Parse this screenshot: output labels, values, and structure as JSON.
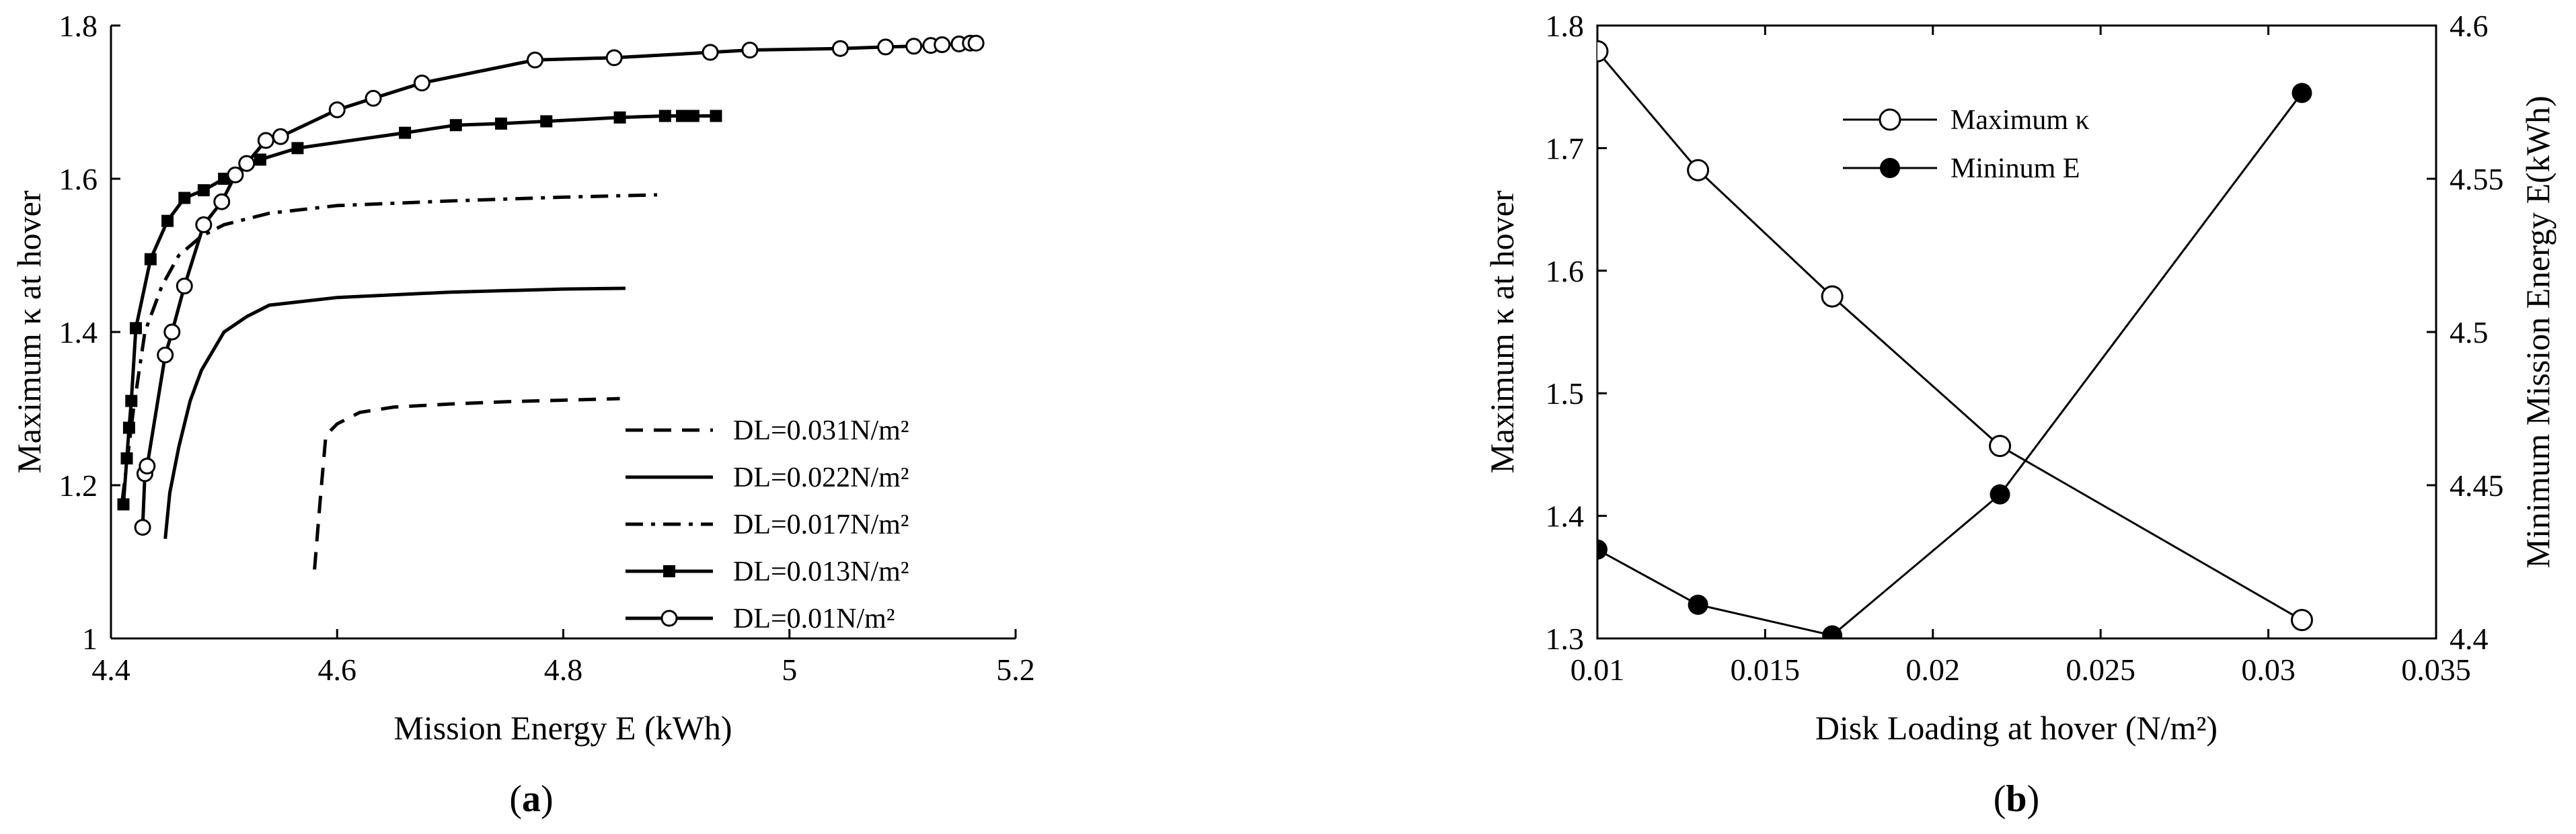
{
  "chart_data": [
    {
      "type": "line",
      "xlabel": "Mission Energy E (kWh)",
      "ylabel": "Maximum κ at hover",
      "xlim": [
        4.4,
        5.2
      ],
      "ylim": [
        1.0,
        1.8
      ],
      "xticks": [
        "4.4",
        "4.6",
        "4.8",
        "5",
        "5.2"
      ],
      "yticks": [
        "1",
        "1.2",
        "1.4",
        "1.6",
        "1.8"
      ],
      "legend_position": "lower-right",
      "grid": false,
      "series": [
        {
          "name": "DL=0.031N/m²",
          "style": "dashed",
          "marker": "none",
          "x": [
            4.58,
            4.585,
            4.59,
            4.6,
            4.62,
            4.65,
            4.7,
            4.75,
            4.8,
            4.85
          ],
          "y": [
            1.09,
            1.18,
            1.265,
            1.28,
            1.295,
            1.302,
            1.306,
            1.309,
            1.311,
            1.313
          ]
        },
        {
          "name": "DL=0.022N/m²",
          "style": "solid",
          "marker": "none",
          "x": [
            4.448,
            4.452,
            4.46,
            4.47,
            4.48,
            4.5,
            4.52,
            4.54,
            4.6,
            4.7,
            4.8,
            4.855
          ],
          "y": [
            1.13,
            1.19,
            1.25,
            1.31,
            1.35,
            1.4,
            1.42,
            1.435,
            1.445,
            1.452,
            1.456,
            1.457
          ]
        },
        {
          "name": "DL=0.017N/m²",
          "style": "dashdot",
          "marker": "none",
          "x": [
            4.41,
            4.42,
            4.43,
            4.445,
            4.46,
            4.48,
            4.5,
            4.54,
            4.6,
            4.7,
            4.8,
            4.883
          ],
          "y": [
            1.18,
            1.3,
            1.4,
            1.46,
            1.5,
            1.525,
            1.54,
            1.555,
            1.565,
            1.571,
            1.576,
            1.579
          ]
        },
        {
          "name": "DL=0.013N/m²",
          "style": "solid",
          "marker": "filled-square",
          "x": [
            4.411,
            4.414,
            4.416,
            4.418,
            4.422,
            4.435,
            4.45,
            4.465,
            4.482,
            4.5,
            4.532,
            4.565,
            4.66,
            4.705,
            4.745,
            4.785,
            4.85,
            4.89,
            4.905,
            4.915,
            4.935
          ],
          "y": [
            1.175,
            1.235,
            1.275,
            1.31,
            1.405,
            1.495,
            1.545,
            1.575,
            1.585,
            1.6,
            1.625,
            1.64,
            1.66,
            1.67,
            1.672,
            1.675,
            1.68,
            1.682,
            1.682,
            1.682,
            1.682
          ]
        },
        {
          "name": "DL=0.01N/m²",
          "style": "solid",
          "marker": "open-circle",
          "x": [
            4.428,
            4.43,
            4.432,
            4.448,
            4.454,
            4.465,
            4.482,
            4.498,
            4.51,
            4.52,
            4.537,
            4.55,
            4.6,
            4.632,
            4.675,
            4.775,
            4.845,
            4.93,
            4.965,
            5.045,
            5.085,
            5.11,
            5.125,
            5.135,
            5.15,
            5.16,
            5.165
          ],
          "y": [
            1.145,
            1.215,
            1.225,
            1.37,
            1.4,
            1.46,
            1.54,
            1.57,
            1.605,
            1.62,
            1.65,
            1.655,
            1.69,
            1.705,
            1.725,
            1.755,
            1.758,
            1.765,
            1.768,
            1.77,
            1.772,
            1.773,
            1.774,
            1.775,
            1.776,
            1.777,
            1.777
          ]
        }
      ]
    },
    {
      "type": "line",
      "xlabel": "Disk Loading at hover (N/m²)",
      "ylabel": "Maximum κ at hover",
      "y2label": "Minimum Mission Energy E(kWh)",
      "xlim": [
        0.01,
        0.035
      ],
      "ylim": [
        1.3,
        1.8
      ],
      "y2lim": [
        4.4,
        4.6
      ],
      "xticks": [
        "0.01",
        "0.015",
        "0.02",
        "0.025",
        "0.03",
        "0.035"
      ],
      "yticks": [
        "1.3",
        "1.4",
        "1.5",
        "1.6",
        "1.7",
        "1.8"
      ],
      "y2ticks": [
        "4.4",
        "4.45",
        "4.5",
        "4.55",
        "4.6"
      ],
      "legend_position": "top-center",
      "grid": false,
      "series": [
        {
          "name": "Maximum κ",
          "axis": "left",
          "marker": "open-circle",
          "x": [
            0.01,
            0.013,
            0.017,
            0.022,
            0.031
          ],
          "y": [
            1.779,
            1.682,
            1.579,
            1.457,
            1.315
          ]
        },
        {
          "name": "Mininum E",
          "axis": "right",
          "marker": "filled-circle",
          "x": [
            0.01,
            0.013,
            0.017,
            0.022,
            0.031
          ],
          "y": [
            4.429,
            4.411,
            4.401,
            4.447,
            4.578
          ]
        }
      ]
    }
  ],
  "captions": {
    "a": "a",
    "b": "b"
  }
}
